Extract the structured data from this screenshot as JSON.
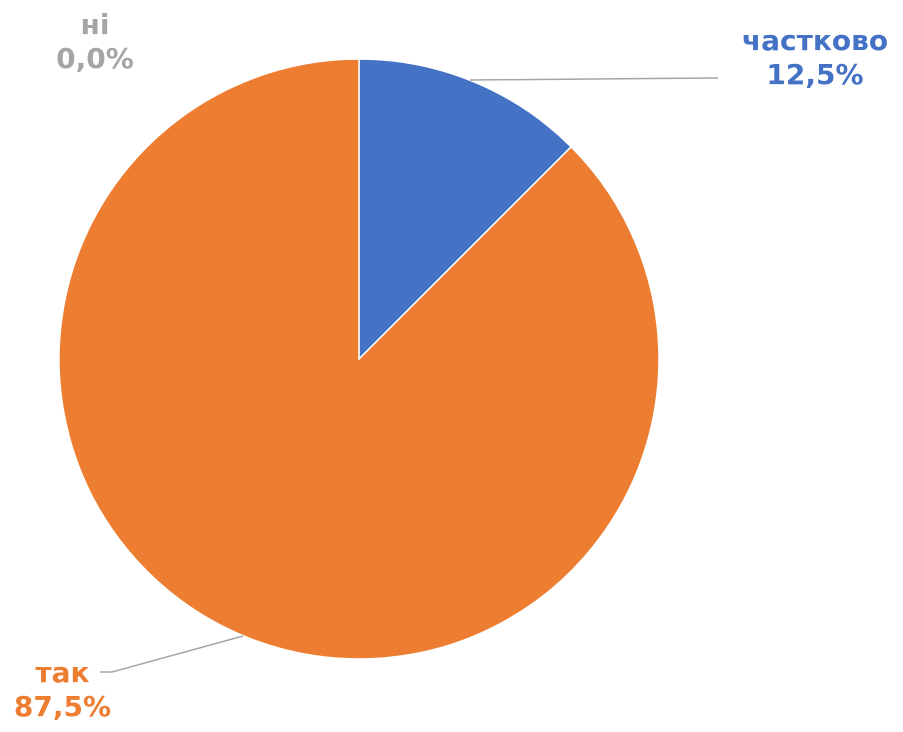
{
  "chart_data": {
    "type": "pie",
    "slices": [
      {
        "label": "частково",
        "value": 12.5,
        "display": "12,5%",
        "color": "#4472C4"
      },
      {
        "label": "так",
        "value": 87.5,
        "display": "87,5%",
        "color": "#ED7D31"
      },
      {
        "label": "ні",
        "value": 0.0,
        "display": "0,0%",
        "color": "#A5A5A5"
      }
    ],
    "start_angle": "12 o'clock, clockwise",
    "leader_line_color": "#A5A5A5",
    "legend": "none"
  }
}
